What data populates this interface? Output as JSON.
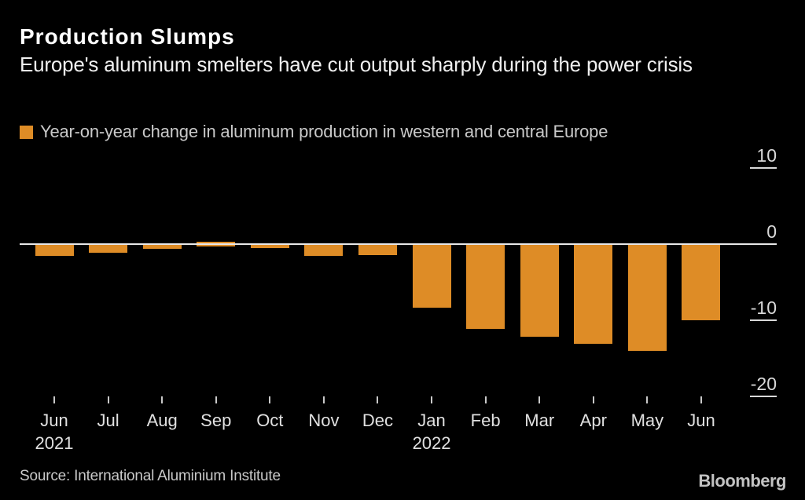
{
  "header": {
    "title": "Production Slumps",
    "subtitle": "Europe's aluminum smelters have cut output sharply during the power crisis"
  },
  "legend": {
    "label": "Year-on-year change in aluminum production in western and central Europe",
    "swatch_color": "#DE8C26"
  },
  "chart_data": {
    "type": "bar",
    "title": "Production Slumps",
    "categories": [
      "Jun",
      "Jul",
      "Aug",
      "Sep",
      "Oct",
      "Nov",
      "Dec",
      "Jan",
      "Feb",
      "Mar",
      "Apr",
      "May",
      "Jun"
    ],
    "year_labels": [
      {
        "index": 0,
        "label": "2021"
      },
      {
        "index": 7,
        "label": "2022"
      }
    ],
    "series": [
      {
        "name": "Year-on-year change in aluminum production in western and central Europe",
        "values": [
          -1.4,
          -1.0,
          -0.5,
          0.4,
          -0.4,
          -1.4,
          -1.3,
          -8.2,
          -11.0,
          -12.1,
          -13.0,
          -13.9,
          -9.9
        ]
      }
    ],
    "xlabel": "",
    "ylabel": "",
    "yticks": [
      10,
      0,
      -10,
      -20
    ],
    "ylim": [
      -22,
      12
    ],
    "grid": false,
    "legend_position": "top-left",
    "bar_color": "#DE8C26"
  },
  "footer": {
    "source": "Source: International Aluminium Institute",
    "brand": "Bloomberg"
  },
  "colors": {
    "background": "#000000",
    "bar": "#DE8C26",
    "title_text": "#FFFFFF",
    "subtitle_text": "#F0F0F0",
    "legend_text": "#C9C9C9",
    "axis_text": "#D9D9D9",
    "axis_line": "#E8E8E8",
    "muted_text": "#C9C9C9"
  }
}
